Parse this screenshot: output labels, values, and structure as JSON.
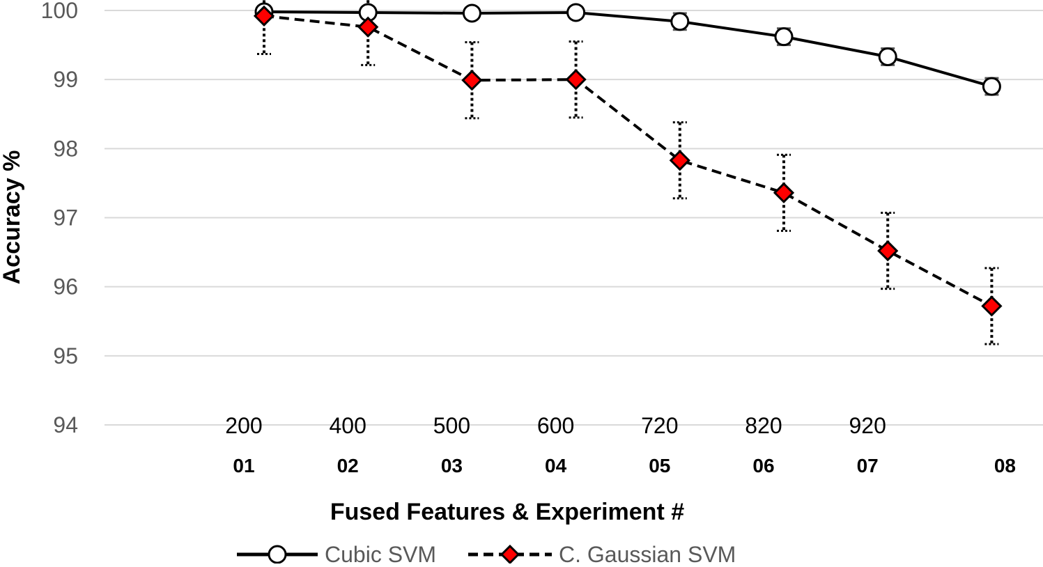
{
  "chart_data": {
    "type": "line",
    "title": "",
    "xlabel": "Fused Features & Experiment #",
    "ylabel": "Accuracy %",
    "ylim": [
      94,
      100
    ],
    "yticks": [
      "94",
      "95",
      "96",
      "97",
      "98",
      "99",
      "100"
    ],
    "grid": true,
    "legend_position": "bottom",
    "categories": [
      "200",
      "400",
      "500",
      "600",
      "720",
      "820",
      "920",
      ""
    ],
    "experiments": [
      "01",
      "02",
      "03",
      "04",
      "05",
      "06",
      "07",
      "08"
    ],
    "series": [
      {
        "name": "Cubic SVM",
        "line_style": "solid",
        "marker": "circle",
        "marker_fill": "#ffffff",
        "line_color": "#000000",
        "values": [
          99.98,
          99.97,
          99.96,
          99.97,
          99.84,
          99.62,
          99.33,
          98.9
        ],
        "error": [
          0.05,
          0.05,
          0.06,
          0.08,
          0.12,
          0.12,
          0.12,
          0.12
        ]
      },
      {
        "name": "C. Gaussian SVM",
        "line_style": "dashed",
        "marker": "diamond",
        "marker_fill": "#ff0000",
        "line_color": "#000000",
        "values": [
          99.92,
          99.76,
          98.99,
          99.0,
          97.83,
          97.36,
          96.52,
          95.72
        ],
        "error": [
          0.55,
          0.55,
          0.55,
          0.55,
          0.55,
          0.55,
          0.55,
          0.55
        ]
      }
    ]
  }
}
